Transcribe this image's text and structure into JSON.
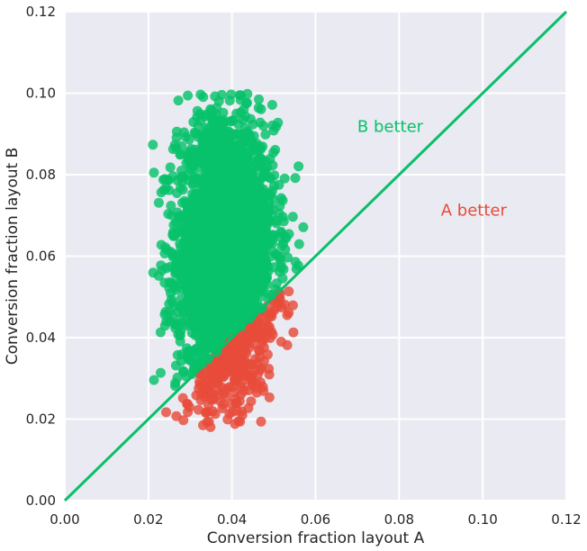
{
  "chart_data": {
    "type": "scatter",
    "xlabel": "Conversion fraction layout A",
    "ylabel": "Conversion fraction layout B",
    "xlim": [
      0,
      0.12
    ],
    "ylim": [
      0,
      0.12
    ],
    "xticks": [
      "0.00",
      "0.02",
      "0.04",
      "0.06",
      "0.08",
      "0.10",
      "0.12"
    ],
    "yticks": [
      "0.00",
      "0.02",
      "0.04",
      "0.06",
      "0.08",
      "0.10",
      "0.12"
    ],
    "grid": true,
    "reference_line": {
      "type": "y=x",
      "color": "#0abf6a"
    },
    "series": [
      {
        "region": "B > A",
        "color": "#07c26a"
      },
      {
        "region": "A > B",
        "color": "#e84c3a"
      }
    ],
    "sample_distribution": {
      "x_mean": 0.0385,
      "x_sd": 0.0058,
      "y_mean": 0.06,
      "y_sd": 0.0165,
      "x_range": [
        0.021,
        0.058
      ],
      "y_range": [
        0.018,
        0.1
      ],
      "n_points": 3200
    },
    "annotations": [
      {
        "text": "B better",
        "x": 0.07,
        "y": 0.0905,
        "color": "#07c26a"
      },
      {
        "text": "A better",
        "x": 0.09,
        "y": 0.07,
        "color": "#e84c3a"
      }
    ]
  }
}
